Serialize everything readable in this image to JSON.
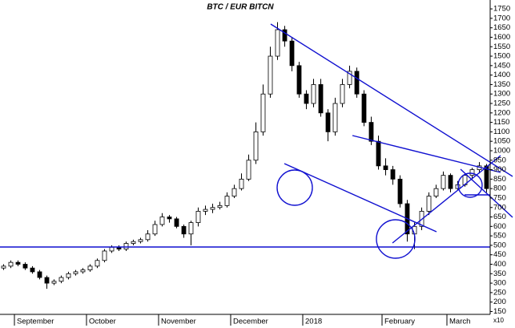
{
  "chart_data": {
    "type": "candlestick",
    "title": "BTC / EUR BITCN",
    "y_multiplier": "x10",
    "categories": [
      null,
      null,
      "September",
      null,
      null,
      null,
      null,
      null,
      null,
      null,
      null,
      null,
      "October",
      null,
      null,
      null,
      null,
      null,
      null,
      null,
      null,
      null,
      "November",
      null,
      null,
      null,
      null,
      null,
      null,
      null,
      null,
      null,
      "December",
      null,
      null,
      null,
      null,
      null,
      null,
      null,
      null,
      null,
      "2018",
      null,
      null,
      null,
      null,
      null,
      null,
      null,
      null,
      null,
      null,
      "February",
      null,
      null,
      null,
      null,
      null,
      null,
      null,
      null,
      "March",
      null,
      null,
      null,
      null,
      null
    ],
    "open": [
      380,
      390,
      410,
      400,
      380,
      360,
      330,
      300,
      310,
      330,
      350,
      360,
      370,
      390,
      420,
      470,
      490,
      480,
      510,
      520,
      530,
      560,
      610,
      650,
      640,
      600,
      560,
      620,
      680,
      690,
      700,
      710,
      760,
      800,
      850,
      950,
      1100,
      1300,
      1500,
      1640,
      1580,
      1450,
      1300,
      1250,
      1350,
      1200,
      1100,
      1250,
      1350,
      1420,
      1300,
      1150,
      1050,
      920,
      900,
      850,
      720,
      560,
      600,
      680,
      760,
      800,
      870,
      800,
      820,
      870,
      900,
      920
    ],
    "high": [
      400,
      420,
      420,
      410,
      390,
      370,
      340,
      320,
      340,
      360,
      370,
      380,
      400,
      430,
      480,
      500,
      500,
      520,
      530,
      540,
      580,
      630,
      670,
      660,
      650,
      610,
      630,
      700,
      710,
      720,
      730,
      780,
      820,
      880,
      980,
      1150,
      1350,
      1550,
      1680,
      1660,
      1600,
      1470,
      1320,
      1380,
      1380,
      1220,
      1280,
      1380,
      1450,
      1440,
      1320,
      1180,
      1080,
      960,
      920,
      870,
      740,
      620,
      700,
      780,
      820,
      890,
      880,
      840,
      880,
      910,
      940,
      930
    ],
    "low": [
      370,
      380,
      390,
      370,
      350,
      320,
      270,
      290,
      300,
      320,
      340,
      350,
      360,
      380,
      410,
      460,
      470,
      470,
      500,
      510,
      520,
      550,
      600,
      620,
      590,
      540,
      500,
      600,
      660,
      670,
      690,
      700,
      750,
      790,
      840,
      930,
      1080,
      1280,
      1480,
      1550,
      1420,
      1280,
      1220,
      1230,
      1180,
      1050,
      1080,
      1230,
      1330,
      1280,
      1130,
      1030,
      900,
      870,
      820,
      700,
      520,
      480,
      580,
      660,
      750,
      790,
      780,
      790,
      810,
      850,
      880,
      780
    ],
    "close": [
      390,
      410,
      400,
      380,
      360,
      330,
      300,
      310,
      330,
      350,
      360,
      370,
      390,
      420,
      470,
      490,
      480,
      510,
      520,
      530,
      560,
      610,
      650,
      640,
      600,
      560,
      620,
      680,
      690,
      700,
      710,
      760,
      800,
      850,
      950,
      1100,
      1300,
      1500,
      1640,
      1580,
      1450,
      1300,
      1250,
      1350,
      1200,
      1100,
      1250,
      1350,
      1420,
      1300,
      1150,
      1050,
      920,
      900,
      850,
      720,
      560,
      600,
      680,
      760,
      800,
      870,
      800,
      820,
      870,
      900,
      920,
      800
    ],
    "ylim": [
      135,
      1780
    ],
    "yticks": [
      150,
      200,
      250,
      300,
      350,
      400,
      450,
      500,
      550,
      600,
      650,
      700,
      750,
      800,
      850,
      900,
      950,
      1000,
      1050,
      1100,
      1150,
      1200,
      1250,
      1300,
      1350,
      1400,
      1450,
      1500,
      1550,
      1600,
      1650,
      1700,
      1750
    ],
    "up_color": "#ffffff",
    "down_color": "#000000",
    "y_axis_side": "right"
  }
}
